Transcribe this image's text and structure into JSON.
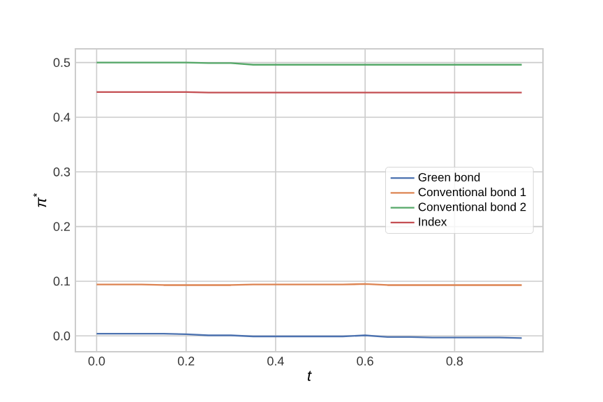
{
  "chart_data": {
    "type": "line",
    "xlabel": "t",
    "ylabel": "π$^{*}$",
    "xlim": [
      -0.0475,
      0.9975
    ],
    "ylim": [
      -0.029,
      0.525
    ],
    "xticks": [
      {
        "value": 0,
        "label": "0.0"
      },
      {
        "value": 0.2,
        "label": "0.2"
      },
      {
        "value": 0.4,
        "label": "0.4"
      },
      {
        "value": 0.6,
        "label": "0.6"
      },
      {
        "value": 0.8,
        "label": "0.8"
      }
    ],
    "yticks": [
      {
        "value": 0,
        "label": "0.0"
      },
      {
        "value": 0.1,
        "label": "0.1"
      },
      {
        "value": 0.2,
        "label": "0.2"
      },
      {
        "value": 0.3,
        "label": "0.3"
      },
      {
        "value": 0.4,
        "label": "0.4"
      },
      {
        "value": 0.5,
        "label": "0.5"
      }
    ],
    "grid": true,
    "legend": "right",
    "marker": "none",
    "line_style": "solid",
    "x": [
      0,
      0.05,
      0.1,
      0.15,
      0.2,
      0.25,
      0.3,
      0.35,
      0.4,
      0.45,
      0.5,
      0.55,
      0.6,
      0.65,
      0.7,
      0.75,
      0.8,
      0.85,
      0.9,
      0.95
    ],
    "series": [
      {
        "name": "Green bond",
        "color": "#4c72b0",
        "values": [
          0.004,
          0.004,
          0.004,
          0.004,
          0.003,
          0.001,
          0.001,
          -0.001,
          -0.001,
          -0.001,
          -0.001,
          -0.001,
          0.001,
          -0.002,
          -0.002,
          -0.003,
          -0.003,
          -0.003,
          -0.003,
          -0.004
        ]
      },
      {
        "name": "Conventional bond 1",
        "color": "#dd8452",
        "values": [
          0.094,
          0.094,
          0.094,
          0.093,
          0.093,
          0.093,
          0.093,
          0.094,
          0.094,
          0.094,
          0.094,
          0.094,
          0.095,
          0.093,
          0.093,
          0.093,
          0.093,
          0.093,
          0.093,
          0.093
        ]
      },
      {
        "name": "Conventional bond 2",
        "color": "#55a868",
        "values": [
          0.5,
          0.5,
          0.5,
          0.5,
          0.5,
          0.499,
          0.499,
          0.496,
          0.496,
          0.496,
          0.496,
          0.496,
          0.496,
          0.496,
          0.496,
          0.496,
          0.496,
          0.496,
          0.496,
          0.496
        ]
      },
      {
        "name": "Index",
        "color": "#c44e52",
        "values": [
          0.446,
          0.446,
          0.446,
          0.446,
          0.446,
          0.445,
          0.445,
          0.445,
          0.445,
          0.445,
          0.445,
          0.445,
          0.445,
          0.445,
          0.445,
          0.445,
          0.445,
          0.445,
          0.445,
          0.445
        ]
      }
    ]
  }
}
